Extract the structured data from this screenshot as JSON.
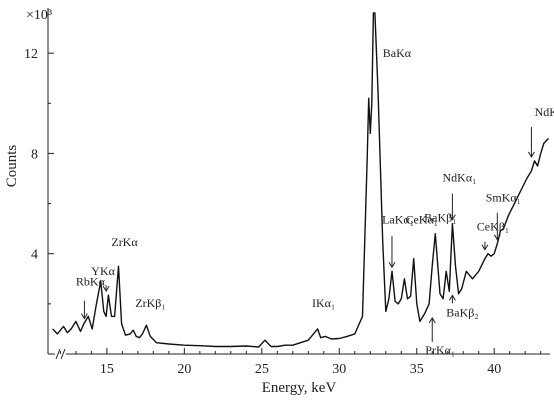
{
  "chart_data": {
    "type": "line",
    "title": "",
    "xlabel": "Energy, keV",
    "ylabel": "Counts",
    "y_multiplier_label": "×10³",
    "xlim": [
      11.2,
      43.6
    ],
    "ylim": [
      0,
      13.8
    ],
    "x_ticks": [
      15,
      20,
      25,
      30,
      35,
      40
    ],
    "y_ticks": [
      4,
      8,
      12
    ],
    "axis_break": "≈",
    "grid": false,
    "legend": "none",
    "series": [
      {
        "x": [
          11.5,
          11.8,
          12.0,
          12.2,
          12.45,
          12.7,
          13.0,
          13.3,
          13.55,
          13.8,
          14.05,
          14.3,
          14.6,
          14.8,
          14.95,
          15.1,
          15.3,
          15.5,
          15.75,
          15.95,
          16.2,
          16.5,
          16.7,
          16.9,
          17.1,
          17.3,
          17.55,
          17.8,
          18.2,
          19.0,
          20.0,
          21.0,
          22.0,
          23.0,
          24.0,
          24.8,
          25.2,
          25.6,
          26.0,
          26.5,
          27.0,
          27.5,
          28.0,
          28.4,
          28.6,
          28.8,
          29.1,
          29.5,
          30.0,
          30.5,
          31.0,
          31.5,
          31.8,
          31.9,
          32.0,
          32.1,
          32.2,
          32.3,
          32.5,
          32.8,
          33.0,
          33.2,
          33.4,
          33.6,
          33.8,
          34.0,
          34.2,
          34.4,
          34.6,
          34.8,
          35.0,
          35.2,
          35.5,
          35.8,
          36.0,
          36.2,
          36.5,
          36.7,
          36.9,
          37.1,
          37.3,
          37.5,
          37.7,
          37.9,
          38.2,
          38.6,
          39.0,
          39.4,
          39.6,
          39.8,
          40.0,
          40.2,
          40.4,
          40.6,
          40.9,
          41.3,
          41.7,
          42.1,
          42.4,
          42.6,
          42.8,
          43.0,
          43.2,
          43.5
        ],
        "y": [
          1.0,
          0.8,
          0.95,
          1.1,
          0.85,
          1.0,
          1.3,
          0.9,
          1.25,
          1.5,
          1.0,
          1.9,
          2.9,
          1.7,
          1.5,
          2.35,
          1.5,
          1.5,
          3.5,
          1.2,
          0.75,
          0.8,
          0.95,
          0.7,
          0.65,
          0.8,
          1.15,
          0.7,
          0.45,
          0.4,
          0.35,
          0.33,
          0.3,
          0.3,
          0.32,
          0.28,
          0.55,
          0.3,
          0.3,
          0.35,
          0.35,
          0.45,
          0.55,
          0.85,
          1.0,
          0.65,
          0.7,
          0.6,
          0.62,
          0.7,
          0.8,
          1.5,
          7.8,
          10.2,
          8.8,
          10.0,
          13.6,
          13.6,
          10.5,
          4.5,
          1.7,
          2.2,
          3.3,
          2.1,
          2.0,
          2.2,
          3.0,
          2.2,
          2.3,
          3.8,
          2.0,
          1.3,
          1.6,
          2.0,
          3.5,
          4.8,
          2.4,
          2.2,
          3.3,
          2.5,
          5.2,
          3.5,
          2.4,
          2.6,
          3.3,
          3.0,
          3.3,
          3.8,
          4.0,
          3.9,
          4.0,
          4.4,
          4.9,
          5.0,
          5.5,
          6.0,
          6.5,
          7.0,
          7.3,
          7.7,
          7.5,
          8.0,
          8.4,
          8.6
        ]
      }
    ],
    "annotations": [
      {
        "label": "BaKα",
        "x": 32.3,
        "y": 13.6
      },
      {
        "label": "ZrKα",
        "x": 15.75,
        "y": 3.5
      },
      {
        "label": "YKα",
        "x": 14.95,
        "y": 2.35
      },
      {
        "label": "RbKα",
        "x": 13.55,
        "y": 1.25
      },
      {
        "label": "ZrKβ₁",
        "x": 17.55,
        "y": 1.15
      },
      {
        "label": "IKα₁",
        "x": 28.6,
        "y": 1.0
      },
      {
        "label": "LaKα₁",
        "x": 33.4,
        "y": 3.3
      },
      {
        "label": "CeKα₁",
        "x": 34.8,
        "y": 3.8
      },
      {
        "label": "BaKβ₁",
        "x": 36.2,
        "y": 4.8
      },
      {
        "label": "NdKα₁",
        "x": 37.3,
        "y": 5.2
      },
      {
        "label": "CeKβ₁",
        "x": 39.4,
        "y": 4.0
      },
      {
        "label": "SmKα₁",
        "x": 40.2,
        "y": 4.4
      },
      {
        "label": "NdKβ₁",
        "x": 42.4,
        "y": 7.7
      },
      {
        "label": "BaKβ₂",
        "x": 37.3,
        "y": 2.5
      },
      {
        "label": "PrKα₁",
        "x": 36.0,
        "y": 1.6
      }
    ]
  }
}
